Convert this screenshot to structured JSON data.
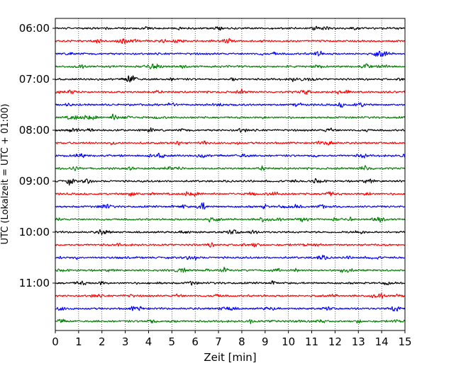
{
  "chart_data": {
    "type": "line",
    "title": "",
    "xlabel": "Zeit  [min]",
    "ylabel": "UTC (Lokalzeit = UTC + 01:00)",
    "xlim": [
      0,
      15
    ],
    "x_ticks": [
      0,
      1,
      2,
      3,
      4,
      5,
      6,
      7,
      8,
      9,
      10,
      11,
      12,
      13,
      14,
      15
    ],
    "grid": "vertical-dotted",
    "trace_interval_minutes": 15,
    "first_trace_utc": "06:00",
    "trace_count": 24,
    "y_tick_labels": [
      "06:00",
      "07:00",
      "08:00",
      "09:00",
      "10:00",
      "11:00"
    ],
    "y_tick_trace_indices": [
      0,
      4,
      8,
      12,
      16,
      20
    ],
    "trace_colors": [
      "#000000",
      "#ff0000",
      "#0000ff",
      "#008000"
    ],
    "series": [
      {
        "start": "06:00",
        "color": "#000000"
      },
      {
        "start": "06:15",
        "color": "#ff0000"
      },
      {
        "start": "06:30",
        "color": "#0000ff"
      },
      {
        "start": "06:45",
        "color": "#008000"
      },
      {
        "start": "07:00",
        "color": "#000000"
      },
      {
        "start": "07:15",
        "color": "#ff0000"
      },
      {
        "start": "07:30",
        "color": "#0000ff"
      },
      {
        "start": "07:45",
        "color": "#008000"
      },
      {
        "start": "08:00",
        "color": "#000000"
      },
      {
        "start": "08:15",
        "color": "#ff0000"
      },
      {
        "start": "08:30",
        "color": "#0000ff"
      },
      {
        "start": "08:45",
        "color": "#008000"
      },
      {
        "start": "09:00",
        "color": "#000000"
      },
      {
        "start": "09:15",
        "color": "#ff0000"
      },
      {
        "start": "09:30",
        "color": "#0000ff"
      },
      {
        "start": "09:45",
        "color": "#008000"
      },
      {
        "start": "10:00",
        "color": "#000000"
      },
      {
        "start": "10:15",
        "color": "#ff0000"
      },
      {
        "start": "10:30",
        "color": "#0000ff"
      },
      {
        "start": "10:45",
        "color": "#008000"
      },
      {
        "start": "11:00",
        "color": "#000000"
      },
      {
        "start": "11:15",
        "color": "#ff0000"
      },
      {
        "start": "11:30",
        "color": "#0000ff"
      },
      {
        "start": "11:45",
        "color": "#008000"
      }
    ]
  }
}
